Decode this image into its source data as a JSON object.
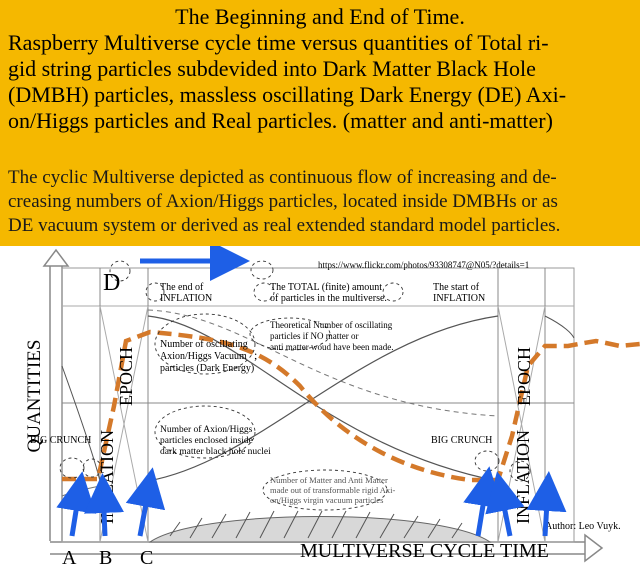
{
  "header": {
    "title": "The Beginning and End of Time.",
    "subtitle_lines": [
      "Raspberry Multiverse cycle time versus quantities of Total  ri-",
      "gid string particles subdevided into Dark Matter Black Hole",
      "(DMBH) particles, massless oscillating Dark Energy (DE) Axi-",
      "on/Higgs particles and Real particles. (matter and anti-matter)"
    ],
    "caption_lines": [
      "The cyclic Multiverse depicted as continuous flow of increasing and de-",
      "creasing numbers of Axion/Higgs particles, located inside  DMBHs or as",
      "DE vacuum system or derived as real extended standard model particles."
    ]
  },
  "diagram": {
    "y_axis_label": "QUANTITIES",
    "x_axis_label": "MULTIVERSE CYCLE TIME",
    "url": "https://www.flickr.com/photos/93308747@N05/?details=1",
    "end_inflation": [
      "The end of",
      "INFLATION"
    ],
    "total_particles": [
      "The TOTAL (finite) amount",
      "of particles in the multiverse."
    ],
    "start_inflation": [
      "The start of",
      "INFLATION"
    ],
    "theoretical": [
      "Theoretical Number of oscillating",
      "particles if NO matter or",
      "anti matter woud have been made."
    ],
    "oscillating": [
      "Number of oscillating",
      "Axion/Higgs Vacuum",
      "particles (Dark Energy)"
    ],
    "enclosed": [
      "Number of Axion/Higgs",
      "particles enclosed inside",
      "dark matter black hole nuclei"
    ],
    "matter": [
      "Number of Matter and Anti Matter",
      "made out of transformable rigid Axi-",
      "on/Higgs virgin vacuum particles"
    ],
    "semicolon": ";",
    "big_crunch_left": "BIG CRUNCH",
    "big_crunch_right": "BIG CRUNCH",
    "inflation_epoch_left": [
      "INFLATION",
      "EPOCH"
    ],
    "inflation_epoch_right": [
      "INFLATION",
      "EPOCH"
    ],
    "author": "Author: Leo Vuyk.",
    "point_labels": {
      "a": "A",
      "b": "B",
      "c": "C",
      "d": "D"
    },
    "colors": {
      "header_bg": "#f5b800",
      "arrow_blue": "#1e5fe6",
      "dashed_orange": "#d4792a"
    }
  }
}
